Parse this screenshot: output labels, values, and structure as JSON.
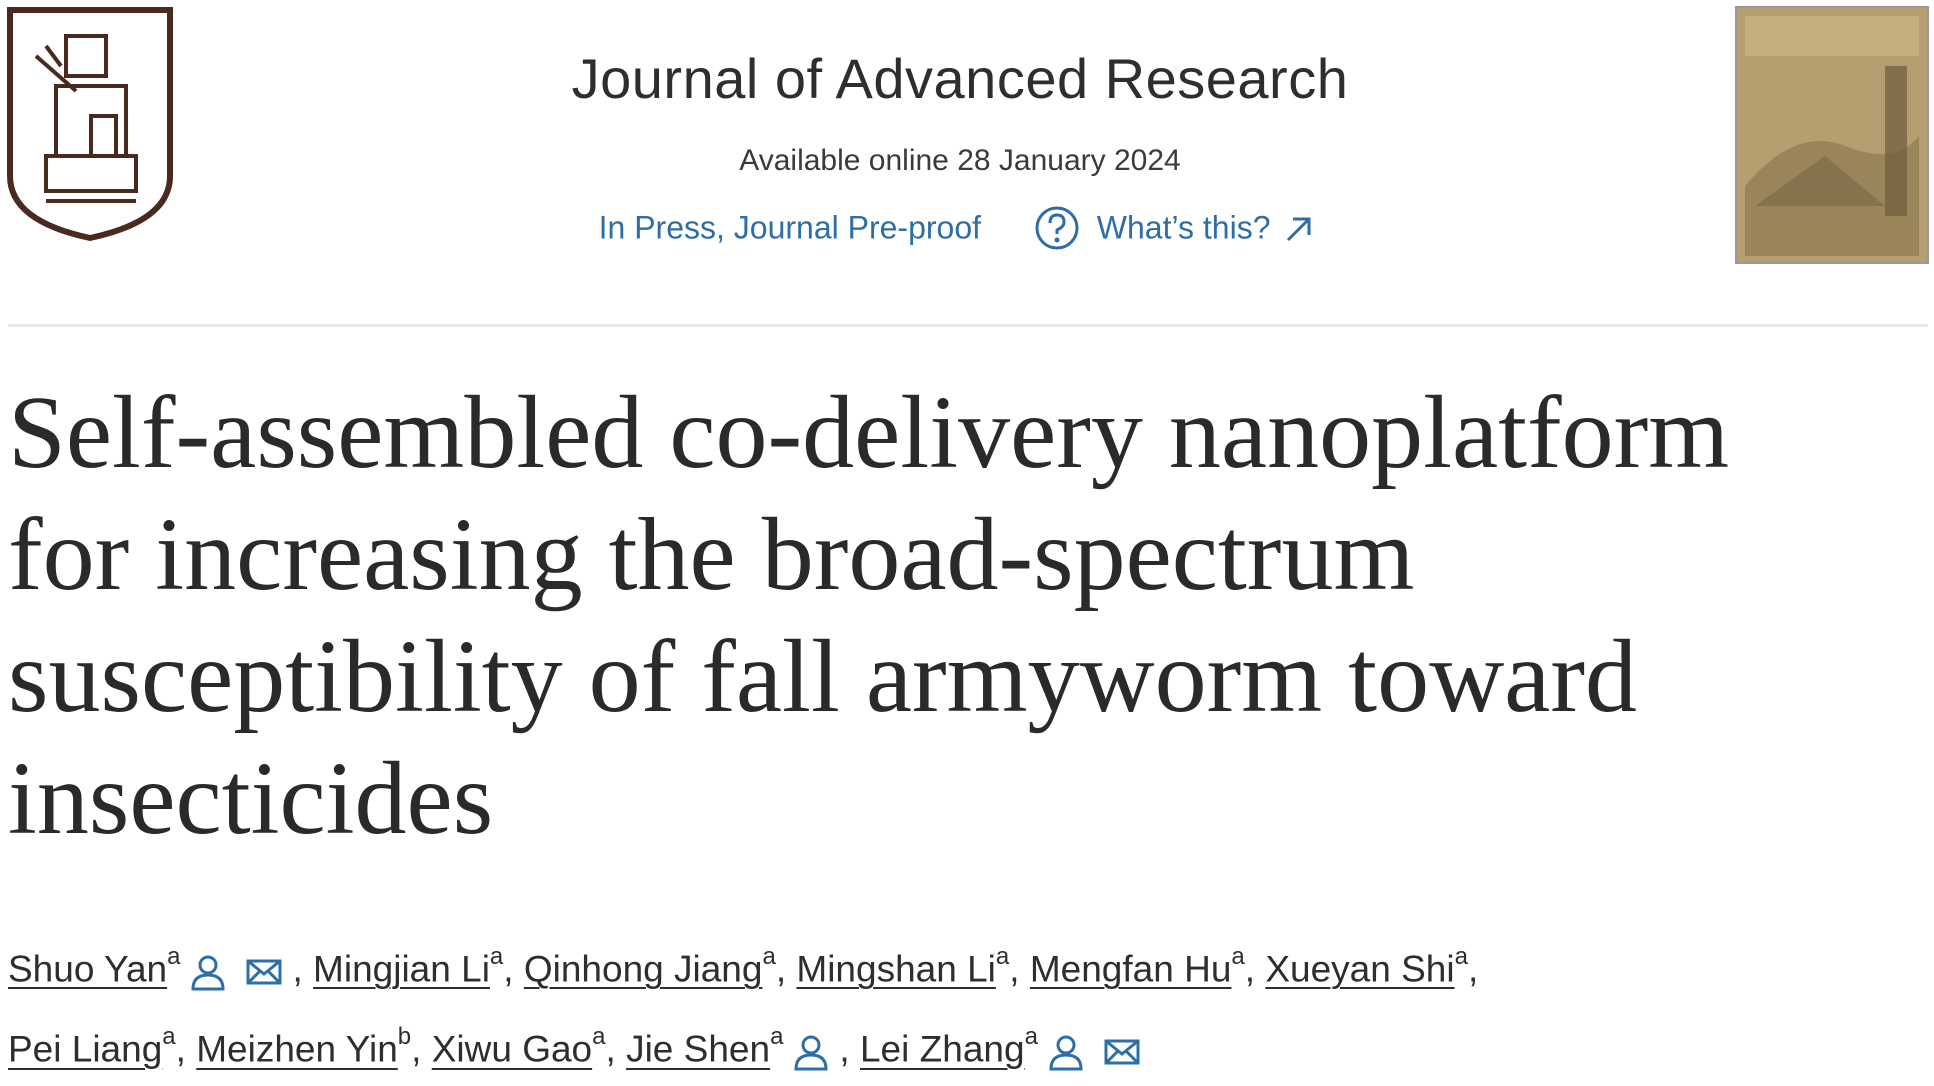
{
  "header": {
    "journal": "Journal of Advanced Research",
    "available": "Available online 28 January 2024",
    "status": "In Press, Journal Pre-proof",
    "help_link": "What’s this?"
  },
  "title": [
    "Self-assembled co-delivery nanoplatform",
    "for increasing the broad-spectrum",
    "susceptibility of fall armyworm toward",
    "insecticides"
  ],
  "separator": ",",
  "author_lines": [
    [
      {
        "name": "Shuo Yan",
        "affiliation": "a",
        "profile": true,
        "email": true
      },
      {
        "name": "Mingjian Li",
        "affiliation": "a"
      },
      {
        "name": "Qinhong Jiang",
        "affiliation": "a"
      },
      {
        "name": "Mingshan Li",
        "affiliation": "a"
      },
      {
        "name": "Mengfan Hu",
        "affiliation": "a"
      },
      {
        "name": "Xueyan Shi",
        "affiliation": "a"
      }
    ],
    [
      {
        "name": "Pei Liang",
        "affiliation": "a"
      },
      {
        "name": "Meizhen Yin",
        "affiliation": "b"
      },
      {
        "name": "Xiwu Gao",
        "affiliation": "a"
      },
      {
        "name": "Jie Shen",
        "affiliation": "a",
        "profile": true
      },
      {
        "name": "Lei Zhang",
        "affiliation": "a",
        "profile": true,
        "email": true
      }
    ]
  ]
}
